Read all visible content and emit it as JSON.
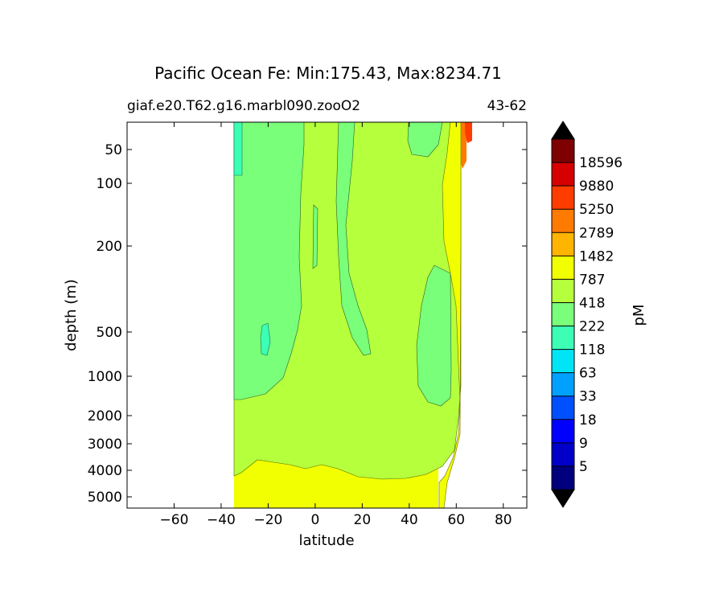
{
  "chart_data": {
    "type": "heatmap",
    "title": "Pacific Ocean Fe: Min:175.43, Max:8234.71",
    "subtitle_left": "giaf.e20.T62.g16.marbl090.zooO2",
    "subtitle_right": "43-62",
    "xlabel": "latitude",
    "ylabel": "depth (m)",
    "xlim": [
      -80,
      90
    ],
    "ylim": [
      0,
      5500
    ],
    "x_ticks": [
      -60,
      -40,
      -20,
      0,
      20,
      40,
      60,
      80
    ],
    "y_ticks": [
      50,
      100,
      200,
      500,
      1000,
      2000,
      3000,
      4000,
      5000
    ],
    "colorbar": {
      "label": "pM",
      "levels": [
        5,
        9,
        18,
        33,
        63,
        118,
        222,
        418,
        787,
        1482,
        2789,
        5250,
        9880,
        18596
      ],
      "colors": [
        "#00007f",
        "#0000c8",
        "#0000ff",
        "#0050ff",
        "#00a0ff",
        "#00e5f5",
        "#3cffb5",
        "#79ff79",
        "#b5ff3c",
        "#f2ff00",
        "#ffb400",
        "#ff7a00",
        "#ff3c00",
        "#d60000",
        "#7f0000"
      ],
      "extend": "both"
    },
    "regions": [
      {
        "band": "118-222",
        "lat": [
          -34,
          -31
        ],
        "depth": [
          0,
          80
        ]
      },
      {
        "band": "222-418",
        "lat": [
          -34,
          60
        ],
        "depth": [
          0,
          1600
        ]
      },
      {
        "band": "418-787",
        "lat": [
          -14,
          60
        ],
        "depth": [
          0,
          4300
        ]
      },
      {
        "band": "787-1482",
        "lat": [
          -34,
          53
        ],
        "depth": [
          4000,
          5500
        ]
      },
      {
        "band": "1482-2789",
        "lat": [
          56,
          64
        ],
        "depth": [
          0,
          100
        ]
      },
      {
        "band": "2789-5250",
        "lat": [
          60,
          66
        ],
        "depth": [
          0,
          60
        ]
      }
    ]
  }
}
